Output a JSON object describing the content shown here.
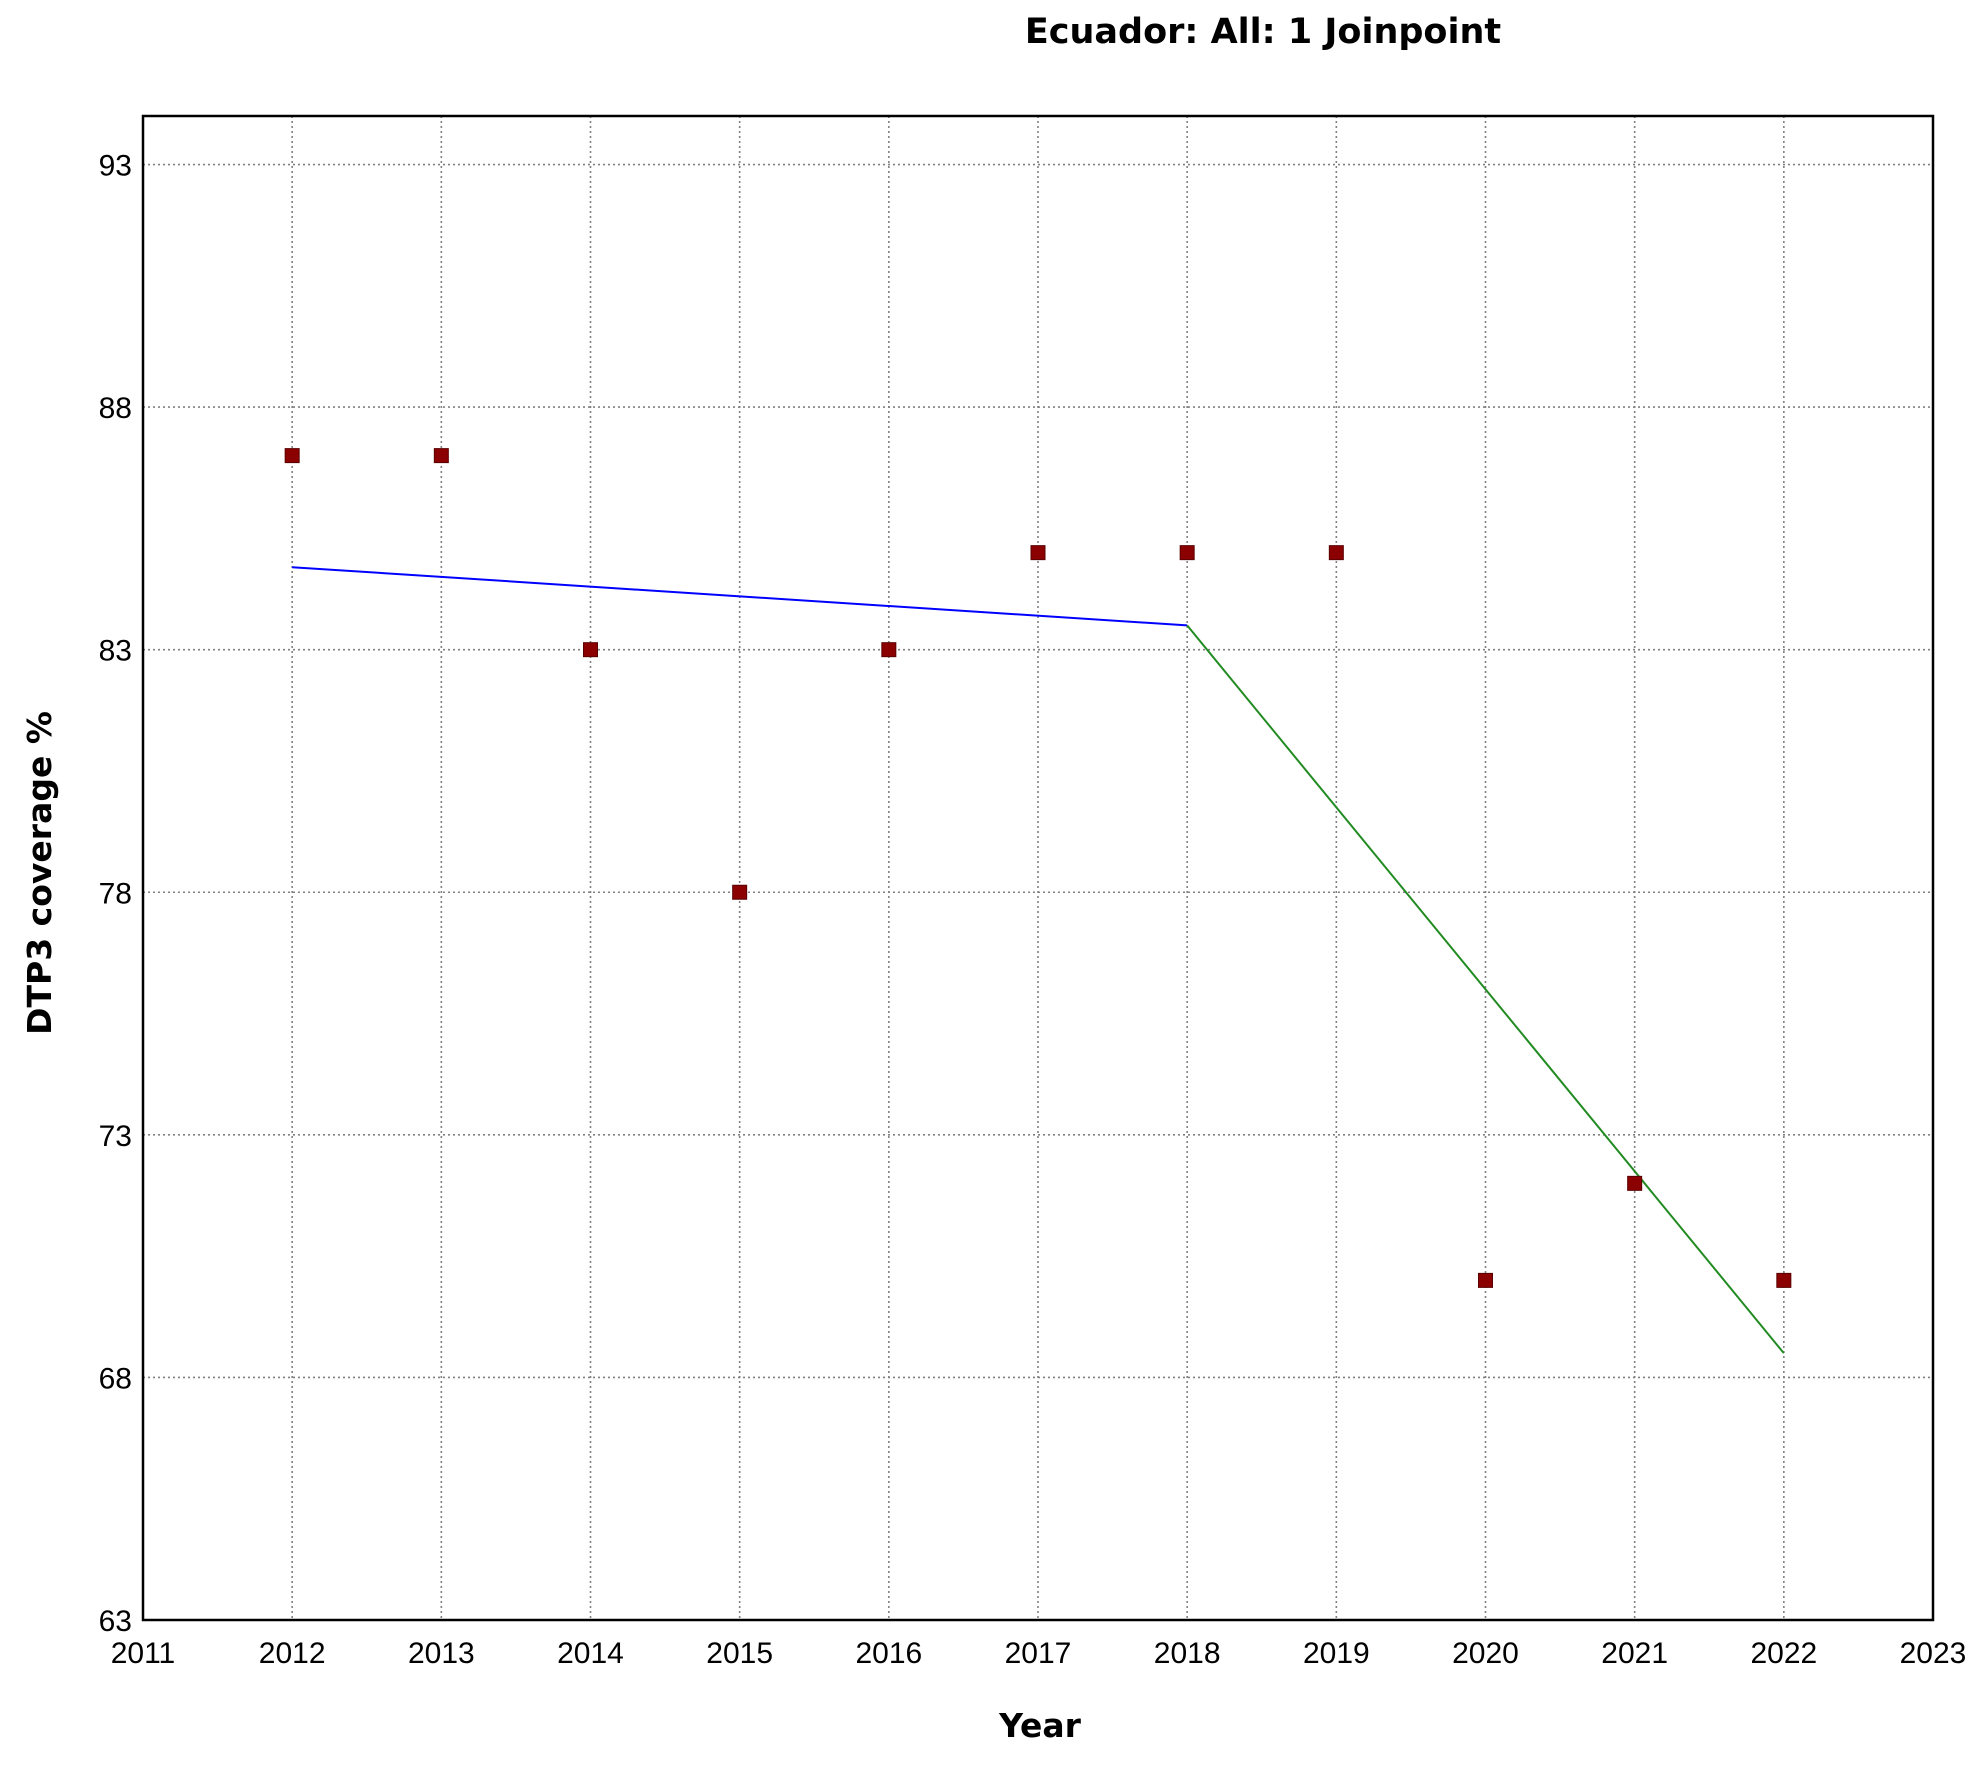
{
  "chart_data": {
    "type": "scatter",
    "title": "Ecuador: All: 1 Joinpoint",
    "xlabel": "Year",
    "ylabel": "DTP3 coverage %",
    "xlim": [
      2011,
      2023
    ],
    "ylim": [
      63,
      94
    ],
    "x_ticks": [
      2011,
      2012,
      2013,
      2014,
      2015,
      2016,
      2017,
      2018,
      2019,
      2020,
      2021,
      2022,
      2023
    ],
    "y_ticks": [
      63,
      68,
      73,
      78,
      83,
      88,
      93
    ],
    "grid": true,
    "legend": "none",
    "points": {
      "color": "#8b0000",
      "x": [
        2012,
        2013,
        2014,
        2015,
        2016,
        2017,
        2018,
        2019,
        2020,
        2021,
        2022
      ],
      "y": [
        87,
        87,
        83,
        78,
        83,
        85,
        85,
        85,
        70,
        72,
        70
      ]
    },
    "segments": [
      {
        "color": "#0000ff",
        "x": [
          2012,
          2018
        ],
        "y": [
          84.7,
          83.5
        ]
      },
      {
        "color": "#228b22",
        "x": [
          2018,
          2022
        ],
        "y": [
          83.5,
          68.5
        ]
      }
    ]
  }
}
